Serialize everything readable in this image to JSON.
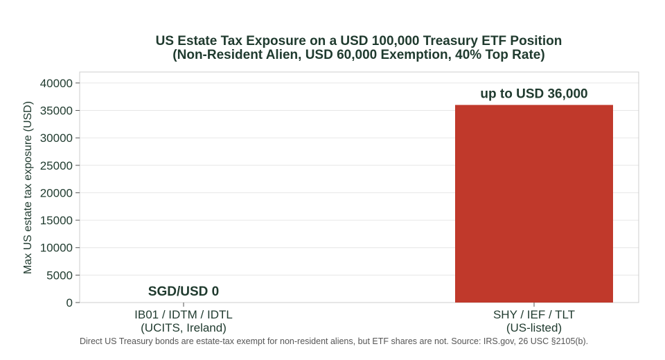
{
  "chart_data": {
    "type": "bar",
    "title": "US Estate Tax Exposure on a USD 100,000 Treasury ETF Position",
    "subtitle": "(Non-Resident Alien, USD 60,000 Exemption, 40% Top Rate)",
    "ylabel": "Max US estate tax exposure (USD)",
    "xlabel": "",
    "categories": [
      [
        "IB01 / IDTM / IDTL",
        "(UCITS, Ireland)"
      ],
      [
        "SHY / IEF / TLT",
        "(US-listed)"
      ]
    ],
    "values": [
      0,
      36000
    ],
    "data_labels": [
      "SGD/USD 0",
      "up to USD 36,000"
    ],
    "bar_colors": [
      "#2e7d4f",
      "#c0392b"
    ],
    "ylim": [
      0,
      42000
    ],
    "yticks": [
      0,
      5000,
      10000,
      15000,
      20000,
      25000,
      30000,
      35000,
      40000
    ],
    "grid": true,
    "footnote": "Direct US Treasury bonds are estate-tax exempt for non-resident aliens, but ETF shares are not. Source: IRS.gov, 26 USC §2105(b)."
  }
}
